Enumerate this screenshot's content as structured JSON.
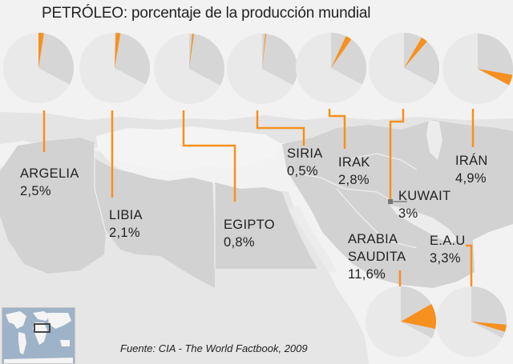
{
  "title": "PETRÓLEO: porcentaje de la producción mundial",
  "source": "Fuente: CIA - The World Factbook, 2009",
  "colors": {
    "accent": "#f7901e",
    "pie_light": "#e9e9e9",
    "pie_dark": "#d6d6d6",
    "land": "#d3d3d3",
    "sea": "#f2f2f2",
    "inset_sea": "#9fb3c8"
  },
  "countries": [
    {
      "name": "ARGELIA",
      "value": "2,5%"
    },
    {
      "name": "LIBIA",
      "value": "2,1%"
    },
    {
      "name": "EGIPTO",
      "value": "0,8%"
    },
    {
      "name": "SIRIA",
      "value": "0,5%"
    },
    {
      "name": "IRAK",
      "value": "2,8%"
    },
    {
      "name": "KUWAIT",
      "value": "3%"
    },
    {
      "name": "IRÁN",
      "value": "4,9%"
    },
    {
      "name": "ARABIA",
      "name2": "SAUDITA",
      "value": "11,6%"
    },
    {
      "name": "E.A.U",
      "value": "3,3%"
    }
  ],
  "chart_data": {
    "type": "pie",
    "title": "PETRÓLEO: porcentaje de la producción mundial",
    "categories": [
      "Argelia",
      "Libia",
      "Egipto",
      "Siria",
      "Irak",
      "Kuwait",
      "Irán",
      "Arabia Saudita",
      "E.A.U"
    ],
    "values": [
      2.5,
      2.1,
      0.8,
      0.5,
      2.8,
      3.0,
      4.9,
      11.6,
      3.3
    ],
    "unit": "% of world oil production",
    "source": "CIA - The World Factbook, 2009"
  }
}
